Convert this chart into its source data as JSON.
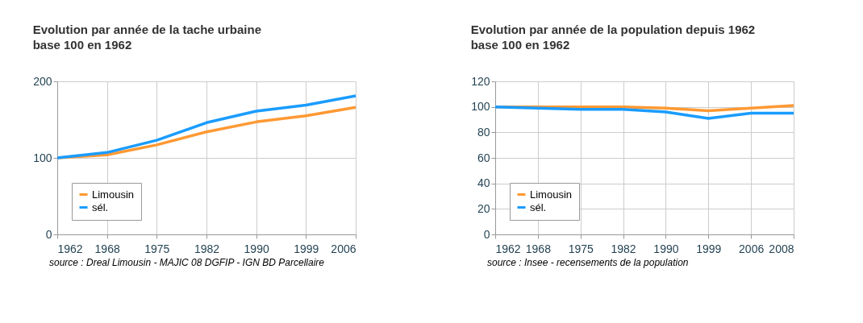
{
  "chart_data": [
    {
      "type": "line",
      "title": "Evolution par année de la tache urbaine",
      "subtitle": "base 100 en 1962",
      "categories": [
        "1962",
        "1968",
        "1975",
        "1982",
        "1990",
        "1999",
        "2006"
      ],
      "series": [
        {
          "name": "Limousin",
          "color": "#ff9933",
          "values": [
            100,
            104,
            117,
            134,
            147,
            155,
            166
          ]
        },
        {
          "name": "sél.",
          "color": "#1a9cff",
          "values": [
            100,
            107,
            123,
            146,
            161,
            169,
            181
          ]
        }
      ],
      "ylim": [
        0,
        200
      ],
      "yticks": [
        0,
        100,
        200
      ],
      "grid": true,
      "legend": "bottom left",
      "marker": "none",
      "line_style": "solid",
      "annotations": [
        "source : Dreal Limousin - MAJIC 08 DGFIP - IGN BD Parcellaire"
      ]
    },
    {
      "type": "line",
      "title": "Evolution par année de la population depuis 1962",
      "subtitle": "base 100 en 1962",
      "categories": [
        "1962",
        "1968",
        "1975",
        "1982",
        "1990",
        "1999",
        "2006",
        "2008"
      ],
      "series": [
        {
          "name": "Limousin",
          "color": "#ff9933",
          "values": [
            100,
            100,
            100,
            100,
            99,
            97,
            99,
            101
          ]
        },
        {
          "name": "sél.",
          "color": "#1a9cff",
          "values": [
            100,
            99,
            98,
            98,
            96,
            91,
            95,
            95
          ]
        }
      ],
      "ylim": [
        0,
        120
      ],
      "yticks": [
        0,
        20,
        40,
        60,
        80,
        100,
        120
      ],
      "grid": true,
      "legend": "bottom left",
      "marker": "none",
      "line_style": "solid",
      "annotations": [
        "source : Insee - recensements de la population"
      ]
    }
  ]
}
